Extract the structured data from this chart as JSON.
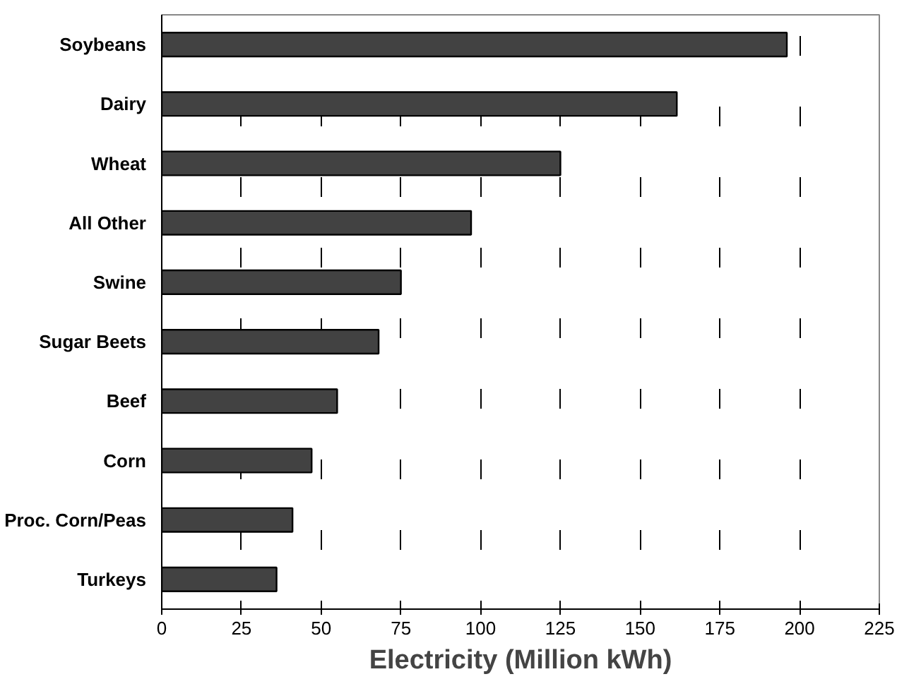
{
  "chart_data": {
    "type": "bar",
    "orientation": "horizontal",
    "xlabel": "Electricity (Million kWh)",
    "categories": [
      "Soybeans",
      "Dairy",
      "Wheat",
      "All Other",
      "Swine",
      "Sugar Beets",
      "Beef",
      "Corn",
      "Proc. Corn/Peas",
      "Turkeys"
    ],
    "values": [
      196,
      161.5,
      125,
      97,
      75,
      68,
      55,
      47,
      41,
      36
    ],
    "color": "#424242",
    "xlim": [
      0,
      225
    ],
    "xticks": [
      0,
      25,
      50,
      75,
      100,
      125,
      150,
      175,
      200,
      225
    ],
    "grid": "x"
  }
}
